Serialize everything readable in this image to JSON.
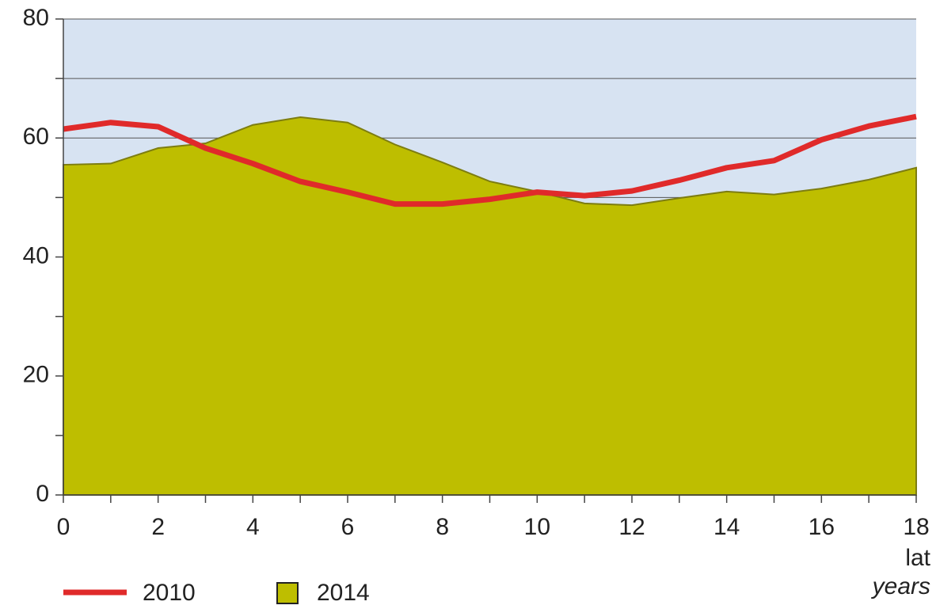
{
  "chart_data": {
    "type": "line_area",
    "x": [
      0,
      1,
      2,
      3,
      4,
      5,
      6,
      7,
      8,
      9,
      10,
      11,
      12,
      13,
      14,
      15,
      16,
      17,
      18
    ],
    "series": [
      {
        "name": "2010",
        "kind": "line",
        "color": "#e02a2a",
        "values": [
          61.5,
          62.6,
          61.9,
          58.3,
          55.7,
          52.7,
          50.9,
          48.9,
          48.9,
          49.7,
          50.9,
          50.3,
          51.1,
          52.9,
          55,
          56.2,
          59.7,
          62,
          63.6
        ]
      },
      {
        "name": "2014",
        "kind": "area",
        "color": "#bebe00",
        "values": [
          55.5,
          55.7,
          58.3,
          59.1,
          62.2,
          63.5,
          62.6,
          58.9,
          55.9,
          52.7,
          51,
          49,
          48.7,
          49.9,
          51,
          50.5,
          51.5,
          53,
          55
        ]
      }
    ],
    "xlabel": "lat",
    "xlabel_en": "years",
    "xlim": [
      0,
      18
    ],
    "xticks": [
      0,
      2,
      4,
      6,
      8,
      10,
      12,
      14,
      16,
      18
    ],
    "xminor_ticks": [
      1,
      3,
      5,
      7,
      9,
      11,
      13,
      15,
      17
    ],
    "ylim": [
      0,
      80
    ],
    "yticks": [
      0,
      20,
      40,
      60,
      80
    ],
    "yminor_ticks": [
      10,
      30,
      50,
      70
    ],
    "grid": true,
    "background": "#d7e3f2"
  }
}
